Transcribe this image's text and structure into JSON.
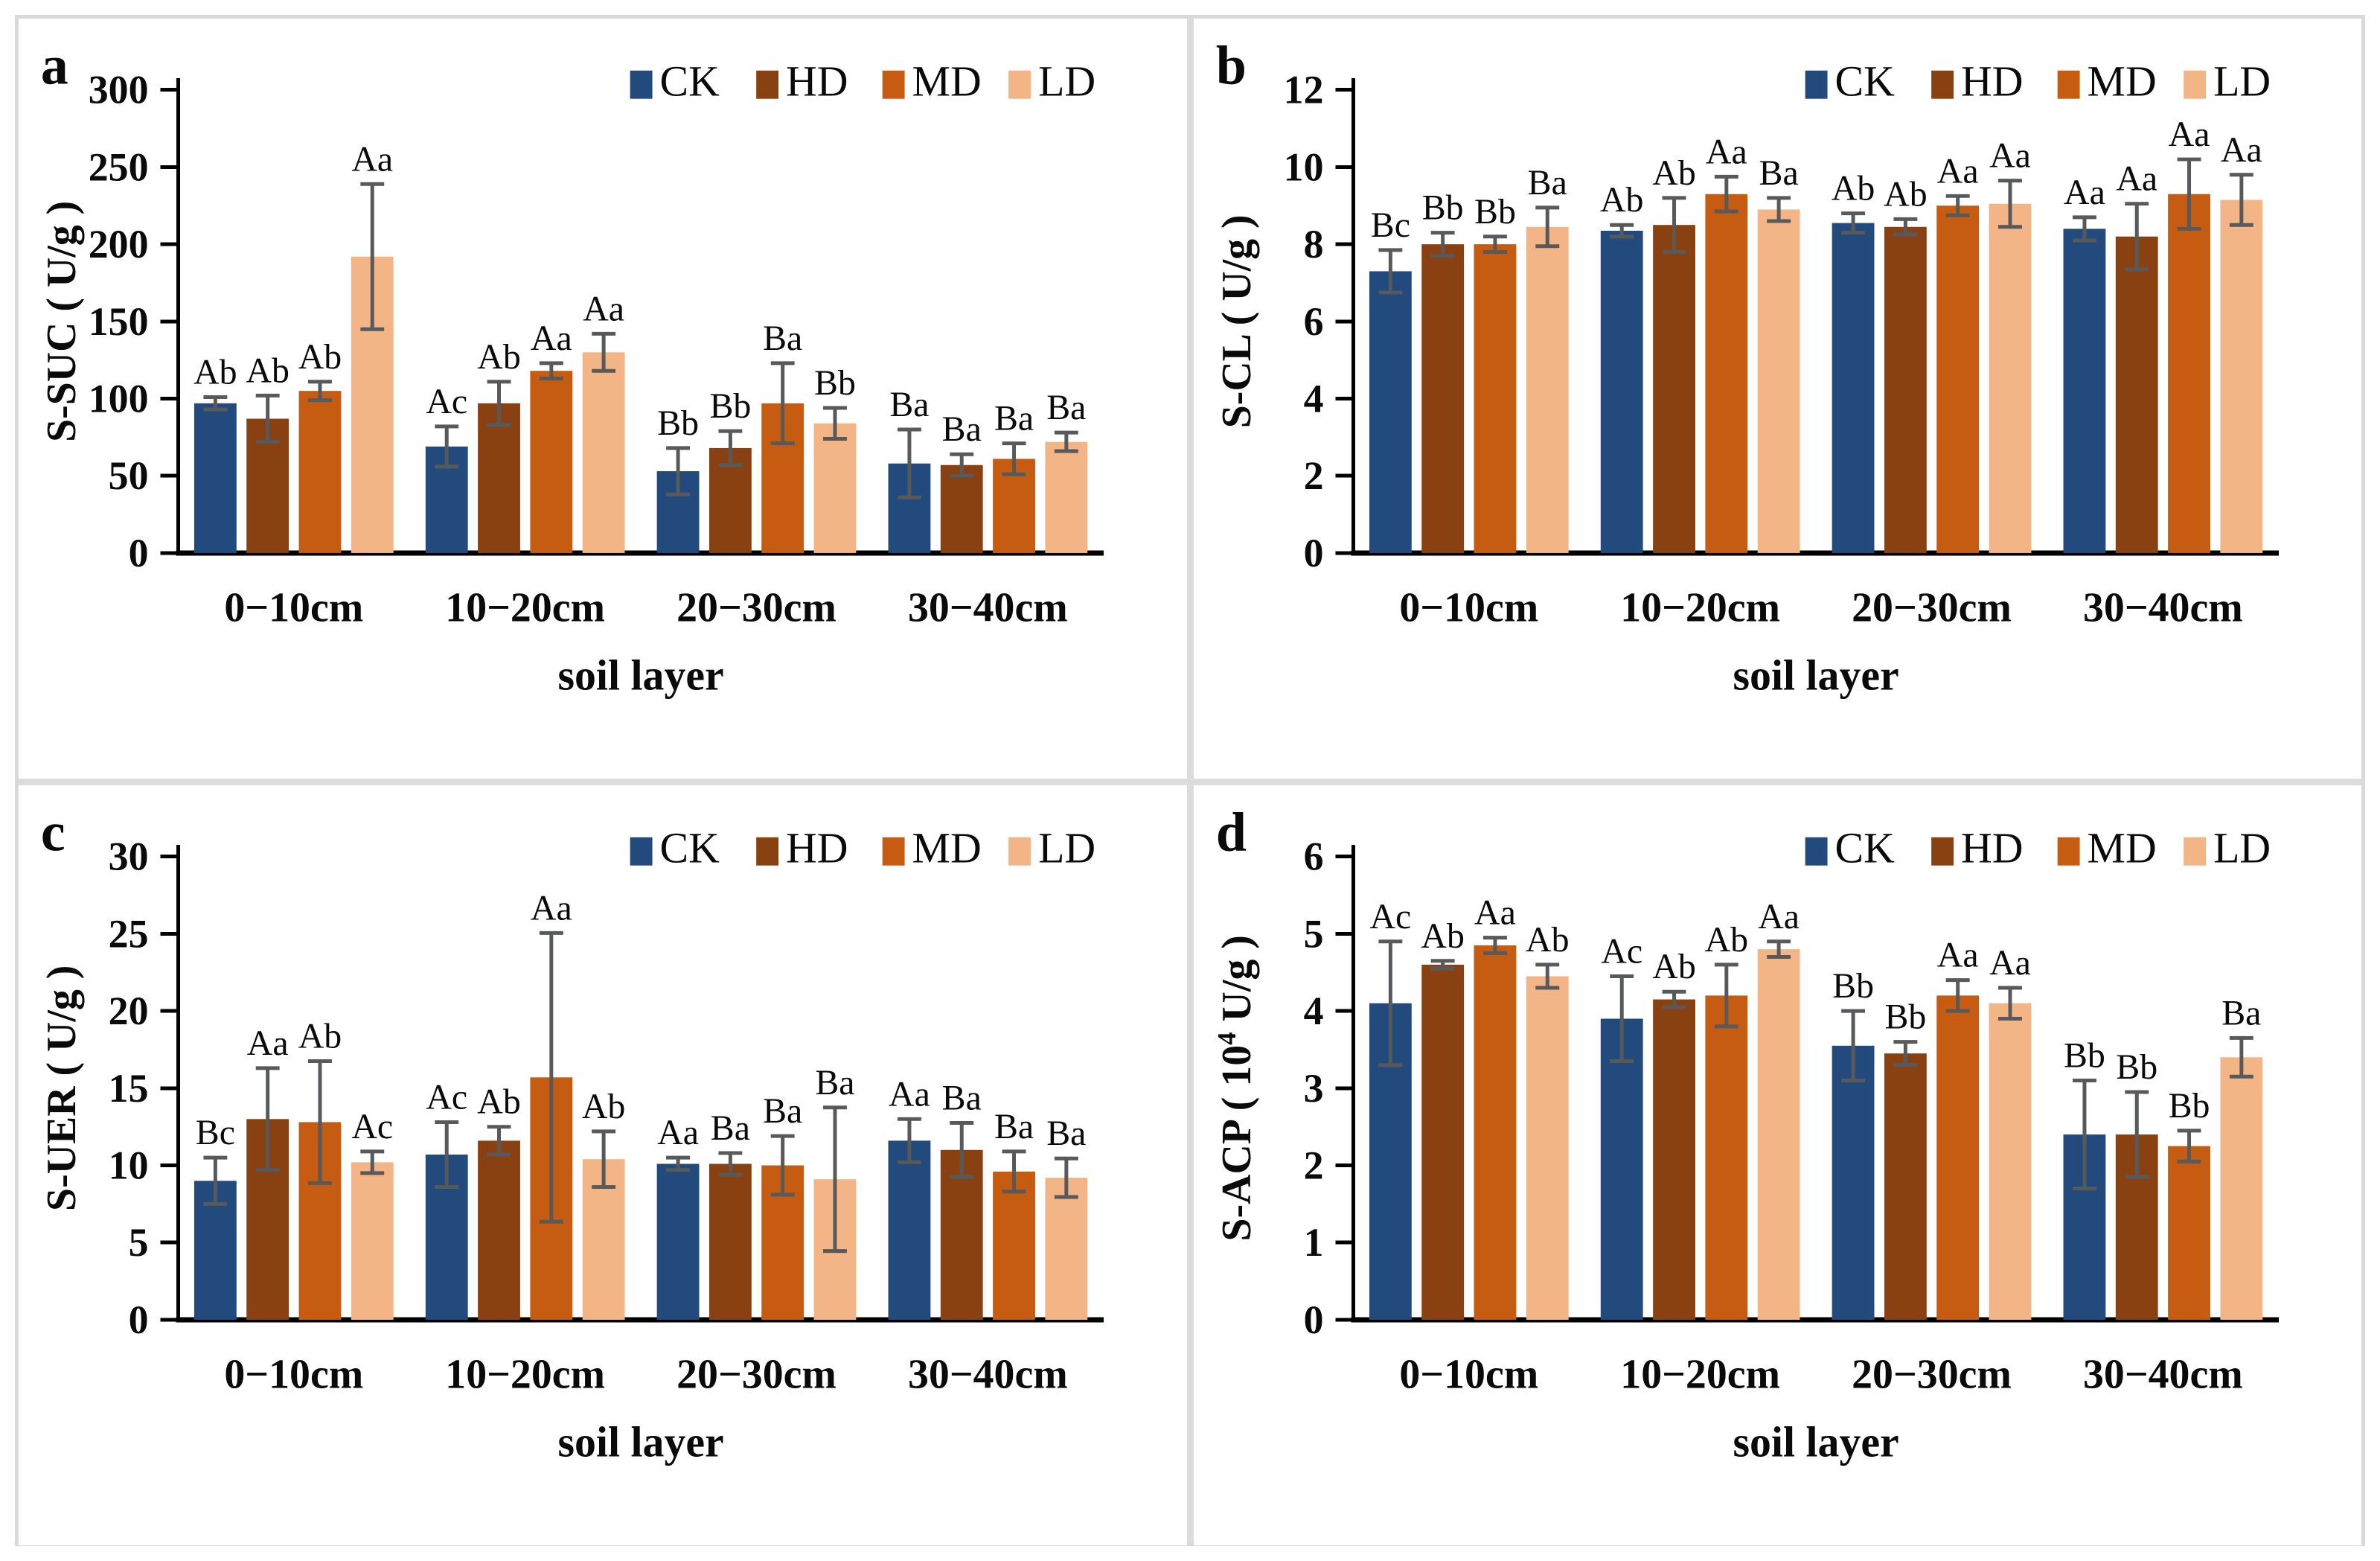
{
  "figure": {
    "background": "#ffffff",
    "frame_color": "#d9d9d9",
    "axis_color": "#000000",
    "error_bar_color": "#58595b",
    "text_color": "#0a0a0a"
  },
  "legend": {
    "labels": [
      "CK",
      "HD",
      "MD",
      "LD"
    ],
    "colors": [
      "#234a7c",
      "#8a4112",
      "#c55c12",
      "#f3b585"
    ],
    "position": "top-right"
  },
  "chart_data": [
    {
      "panel": "a",
      "type": "bar",
      "ylabel": "S-SUC ( U/g )",
      "xlabel": "soil layer",
      "ylim": [
        0,
        300
      ],
      "ytick_step": 50,
      "yticks": [
        0,
        50,
        100,
        150,
        200,
        250,
        300
      ],
      "grid": false,
      "legend_position": "top-right",
      "categories": [
        "0−10cm",
        "10−20cm",
        "20−30cm",
        "30−40cm"
      ],
      "series": [
        {
          "name": "CK",
          "color": "#234a7c",
          "values": [
            97,
            69,
            53,
            58
          ],
          "errors": [
            4,
            13,
            15,
            22
          ],
          "letters": [
            "Ab",
            "Ac",
            "Bb",
            "Ba"
          ]
        },
        {
          "name": "HD",
          "color": "#8a4112",
          "values": [
            87,
            97,
            68,
            57
          ],
          "errors": [
            15,
            14,
            11,
            7
          ],
          "letters": [
            "Ab",
            "Ab",
            "Bb",
            "Ba"
          ]
        },
        {
          "name": "MD",
          "color": "#c55c12",
          "values": [
            105,
            118,
            97,
            61
          ],
          "errors": [
            6,
            5,
            26,
            10
          ],
          "letters": [
            "Ab",
            "Aa",
            "Ba",
            "Ba"
          ]
        },
        {
          "name": "LD",
          "color": "#f3b585",
          "values": [
            192,
            130,
            84,
            72
          ],
          "errors": [
            47,
            12,
            10,
            6
          ],
          "letters": [
            "Aa",
            "Aa",
            "Bb",
            "Ba"
          ]
        }
      ]
    },
    {
      "panel": "b",
      "type": "bar",
      "ylabel": "S-CL ( U/g )",
      "xlabel": "soil layer",
      "ylim": [
        0,
        12
      ],
      "ytick_step": 2,
      "yticks": [
        0,
        2,
        4,
        6,
        8,
        10,
        12
      ],
      "grid": false,
      "legend_position": "top-right",
      "categories": [
        "0−10cm",
        "10−20cm",
        "20−30cm",
        "30−40cm"
      ],
      "series": [
        {
          "name": "CK",
          "color": "#234a7c",
          "values": [
            7.3,
            8.35,
            8.55,
            8.4
          ],
          "errors": [
            0.55,
            0.15,
            0.25,
            0.3
          ],
          "letters": [
            "Bc",
            "Ab",
            "Ab",
            "Aa"
          ]
        },
        {
          "name": "HD",
          "color": "#8a4112",
          "values": [
            8.0,
            8.5,
            8.45,
            8.2
          ],
          "errors": [
            0.3,
            0.7,
            0.2,
            0.85
          ],
          "letters": [
            "Bb",
            "Ab",
            "Ab",
            "Aa"
          ]
        },
        {
          "name": "MD",
          "color": "#c55c12",
          "values": [
            8.0,
            9.3,
            9.0,
            9.3
          ],
          "errors": [
            0.2,
            0.45,
            0.25,
            0.9
          ],
          "letters": [
            "Bb",
            "Aa",
            "Aa",
            "Aa"
          ]
        },
        {
          "name": "LD",
          "color": "#f3b585",
          "values": [
            8.45,
            8.9,
            9.05,
            9.15
          ],
          "errors": [
            0.5,
            0.3,
            0.6,
            0.65
          ],
          "letters": [
            "Ba",
            "Ba",
            "Aa",
            "Aa"
          ]
        }
      ]
    },
    {
      "panel": "c",
      "type": "bar",
      "ylabel": "S-UER ( U/g )",
      "xlabel": "soil layer",
      "ylim": [
        0,
        30
      ],
      "ytick_step": 5,
      "yticks": [
        0,
        5,
        10,
        15,
        20,
        25,
        30
      ],
      "grid": false,
      "legend_position": "top-right",
      "categories": [
        "0−10cm",
        "10−20cm",
        "20−30cm",
        "30−40cm"
      ],
      "series": [
        {
          "name": "CK",
          "color": "#234a7c",
          "values": [
            9.0,
            10.7,
            10.1,
            11.6
          ],
          "errors": [
            1.5,
            2.1,
            0.4,
            1.4
          ],
          "letters": [
            "Bc",
            "Ac",
            "Aa",
            "Aa"
          ]
        },
        {
          "name": "HD",
          "color": "#8a4112",
          "values": [
            13.0,
            11.6,
            10.1,
            11.0
          ],
          "errors": [
            3.3,
            0.9,
            0.7,
            1.75
          ],
          "letters": [
            "Aa",
            "Ab",
            "Ba",
            "Ba"
          ]
        },
        {
          "name": "MD",
          "color": "#c55c12",
          "values": [
            12.8,
            15.7,
            10.0,
            9.6
          ],
          "errors": [
            3.95,
            9.35,
            1.9,
            1.3
          ],
          "letters": [
            "Ab",
            "Aa",
            "Ba",
            "Ba"
          ]
        },
        {
          "name": "LD",
          "color": "#f3b585",
          "values": [
            10.2,
            10.4,
            9.1,
            9.2
          ],
          "errors": [
            0.7,
            1.8,
            4.65,
            1.25
          ],
          "letters": [
            "Ac",
            "Ab",
            "Ba",
            "Ba"
          ]
        }
      ]
    },
    {
      "panel": "d",
      "type": "bar",
      "ylabel": "S-ACP ( 10⁴ U/g )",
      "xlabel": "soil layer",
      "ylim": [
        0,
        6
      ],
      "ytick_step": 1,
      "yticks": [
        0,
        1,
        2,
        3,
        4,
        5,
        6
      ],
      "grid": false,
      "legend_position": "top-right",
      "categories": [
        "0−10cm",
        "10−20cm",
        "20−30cm",
        "30−40cm"
      ],
      "series": [
        {
          "name": "CK",
          "color": "#234a7c",
          "values": [
            4.1,
            3.9,
            3.55,
            2.4
          ],
          "errors": [
            0.8,
            0.55,
            0.45,
            0.7
          ],
          "letters": [
            "Ac",
            "Ac",
            "Bb",
            "Bb"
          ]
        },
        {
          "name": "HD",
          "color": "#8a4112",
          "values": [
            4.6,
            4.15,
            3.45,
            2.4
          ],
          "errors": [
            0.05,
            0.1,
            0.15,
            0.55
          ],
          "letters": [
            "Ab",
            "Ab",
            "Bb",
            "Bb"
          ]
        },
        {
          "name": "MD",
          "color": "#c55c12",
          "values": [
            4.85,
            4.2,
            4.2,
            2.25
          ],
          "errors": [
            0.1,
            0.4,
            0.2,
            0.2
          ],
          "letters": [
            "Aa",
            "Ab",
            "Aa",
            "Bb"
          ]
        },
        {
          "name": "LD",
          "color": "#f3b585",
          "values": [
            4.45,
            4.8,
            4.1,
            3.4
          ],
          "errors": [
            0.15,
            0.1,
            0.2,
            0.25
          ],
          "letters": [
            "Ab",
            "Aa",
            "Aa",
            "Ba"
          ]
        }
      ]
    }
  ]
}
